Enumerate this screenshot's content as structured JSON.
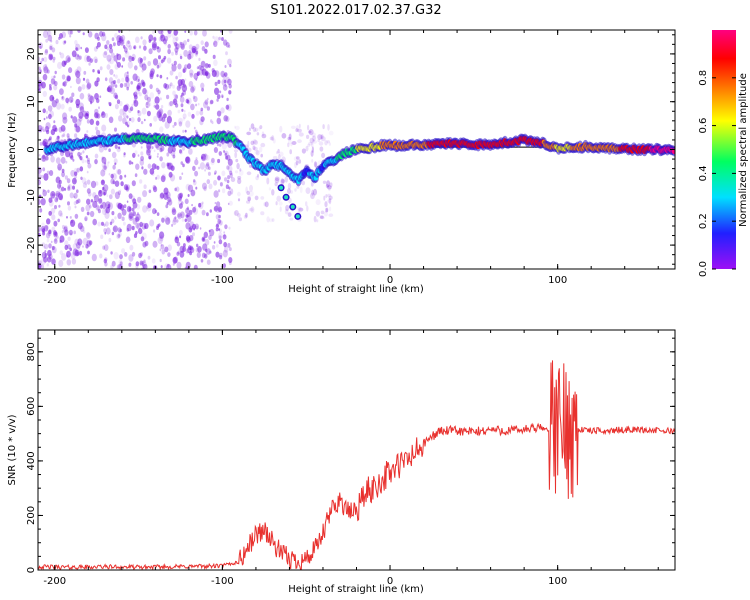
{
  "title": "S101.2022.017.02.37.G32",
  "colors": {
    "snr_line": "#e8312e",
    "scatter": "#7a1fe0",
    "ridge_low": "#2a10c8",
    "ridge_mid": "#20e0c0",
    "ridge_high": "#ff2020",
    "colorbar": [
      "#9d10f5",
      "#2020ff",
      "#00e0ff",
      "#00ff60",
      "#ffff00",
      "#ff8000",
      "#ff0000",
      "#ff0080"
    ]
  },
  "chart_data": [
    {
      "type": "heatmap",
      "xlabel": "Height of straight line (km)",
      "ylabel": "Frequency (Hz)",
      "xlim": [
        -210,
        170
      ],
      "ylim": [
        -25,
        25
      ],
      "xticks": [
        -200,
        -100,
        0,
        100
      ],
      "yticks": [
        -20,
        -10,
        0,
        10,
        20
      ],
      "colorbar": {
        "label": "Normalized spectral amplitude",
        "range": [
          0,
          1
        ],
        "ticks": [
          0.0,
          0.2,
          0.4,
          0.6,
          0.8
        ]
      },
      "ridge": {
        "x": [
          -205,
          -190,
          -180,
          -170,
          -160,
          -150,
          -140,
          -130,
          -120,
          -110,
          -100,
          -95,
          -90,
          -85,
          -80,
          -75,
          -70,
          -65,
          -60,
          -55,
          -50,
          -45,
          -40,
          -35,
          -30,
          -25,
          -20,
          -15,
          -10,
          -5,
          0,
          5,
          10,
          20,
          30,
          40,
          50,
          60,
          70,
          80,
          90,
          95,
          100,
          110,
          120,
          130,
          140,
          150,
          160,
          170
        ],
        "y": [
          0,
          1,
          1.5,
          1.8,
          2.2,
          2.5,
          2.2,
          1.8,
          1.5,
          2.0,
          2.8,
          2.5,
          1.0,
          -1.5,
          -3.0,
          -4.5,
          -3.0,
          -3.5,
          -5.0,
          -6.5,
          -4.5,
          -6.0,
          -3.5,
          -2.5,
          -1.5,
          -0.5,
          0.0,
          0.2,
          0.5,
          0.8,
          1.0,
          0.8,
          1.0,
          1.0,
          1.2,
          1.2,
          1.0,
          1.1,
          1.5,
          2.0,
          1.5,
          0.8,
          0.2,
          0.5,
          0.6,
          0.3,
          0.1,
          0.0,
          0.0,
          0.0
        ],
        "amplitude": [
          0.25,
          0.25,
          0.3,
          0.35,
          0.35,
          0.4,
          0.4,
          0.35,
          0.35,
          0.4,
          0.45,
          0.4,
          0.35,
          0.3,
          0.35,
          0.3,
          0.3,
          0.35,
          0.3,
          0.25,
          0.2,
          0.25,
          0.2,
          0.3,
          0.4,
          0.45,
          0.5,
          0.55,
          0.6,
          0.65,
          0.7,
          0.72,
          0.75,
          0.78,
          0.8,
          0.82,
          0.85,
          0.85,
          0.85,
          0.85,
          0.8,
          0.75,
          0.6,
          0.65,
          0.7,
          0.75,
          0.8,
          0.9,
          0.95,
          0.95
        ]
      },
      "branch": {
        "x": [
          -65,
          -62,
          -58,
          -55
        ],
        "y": [
          -8,
          -10,
          -12,
          -14
        ]
      },
      "horizontal_line": {
        "x": [
          -5,
          170
        ],
        "y": 0.5
      }
    },
    {
      "type": "line",
      "xlabel": "Height of straight line (km)",
      "ylabel": "SNR (10 * v/v)",
      "xlim": [
        -210,
        170
      ],
      "ylim": [
        0,
        880
      ],
      "xticks": [
        -200,
        -100,
        0,
        100
      ],
      "yticks": [
        0,
        200,
        400,
        600,
        800
      ],
      "series": [
        {
          "x": [
            -210,
            -190,
            -170,
            -150,
            -130,
            -110,
            -100,
            -90,
            -85,
            -80,
            -75,
            -70,
            -65,
            -60,
            -55,
            -50,
            -45,
            -40,
            -35,
            -30,
            -25,
            -20,
            -15,
            -10,
            -5,
            0,
            5,
            10,
            15,
            20,
            25,
            30,
            40,
            50,
            60,
            70,
            80,
            90,
            95,
            100,
            105,
            110,
            115,
            120,
            130,
            140,
            150,
            160,
            170
          ],
          "y": [
            12,
            10,
            12,
            10,
            12,
            14,
            15,
            30,
            80,
            130,
            150,
            100,
            60,
            40,
            35,
            40,
            70,
            130,
            220,
            260,
            210,
            220,
            280,
            300,
            330,
            360,
            380,
            400,
            430,
            460,
            490,
            510,
            510,
            505,
            515,
            510,
            515,
            520,
            515,
            520,
            520,
            515,
            515,
            510,
            510,
            515,
            515,
            510,
            510
          ]
        }
      ]
    }
  ]
}
